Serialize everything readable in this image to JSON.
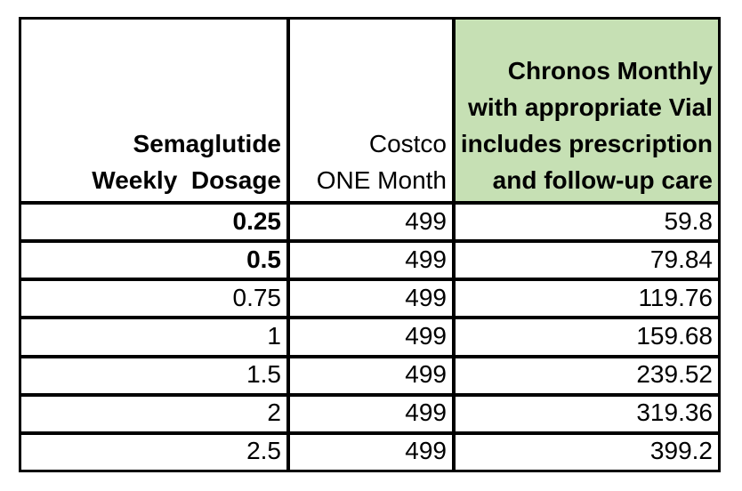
{
  "colors": {
    "page_background": "#ffffff",
    "border": "#000000",
    "text": "#000000",
    "chronos_header_fill": "#c6e0b4"
  },
  "table": {
    "headers": {
      "dosage": {
        "lines": [
          "Semaglutide",
          "Weekly  Dosage"
        ]
      },
      "costco": {
        "lines": [
          "Costco",
          "ONE Month"
        ]
      },
      "chronos": {
        "lines": [
          "Chronos Monthly",
          "with appropriate Vial",
          "includes prescription",
          "and follow-up care"
        ]
      }
    },
    "rows": [
      {
        "dosage": "0.25",
        "costco": "499",
        "chronos": "59.8"
      },
      {
        "dosage": "0.5",
        "costco": "499",
        "chronos": "79.84"
      },
      {
        "dosage": "0.75",
        "costco": "499",
        "chronos": "119.76"
      },
      {
        "dosage": "1",
        "costco": "499",
        "chronos": "159.68"
      },
      {
        "dosage": "1.5",
        "costco": "499",
        "chronos": "239.52"
      },
      {
        "dosage": "2",
        "costco": "499",
        "chronos": "319.36"
      },
      {
        "dosage": "2.5",
        "costco": "499",
        "chronos": "399.2"
      }
    ]
  },
  "chart_data": {
    "type": "table",
    "columns": [
      "Semaglutide Weekly Dosage",
      "Costco ONE Month",
      "Chronos Monthly with appropriate Vial includes prescription and follow-up care"
    ],
    "rows": [
      [
        0.25,
        499,
        59.8
      ],
      [
        0.5,
        499,
        79.84
      ],
      [
        0.75,
        499,
        119.76
      ],
      [
        1,
        499,
        159.68
      ],
      [
        1.5,
        499,
        239.52
      ],
      [
        2,
        499,
        319.36
      ],
      [
        2.5,
        499,
        399.2
      ]
    ]
  }
}
